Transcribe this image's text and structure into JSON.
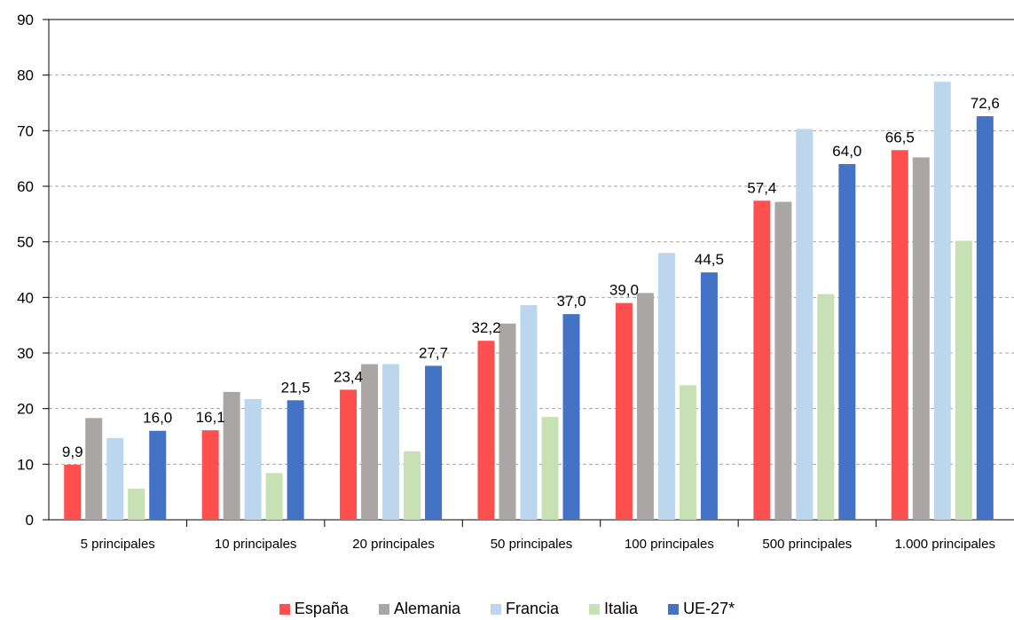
{
  "chart_data": {
    "type": "bar",
    "categories": [
      "5 principales",
      "10 principales",
      "20 principales",
      "50 principales",
      "100 principales",
      "500 principales",
      "1.000 principales"
    ],
    "series": [
      {
        "name": "España",
        "color": "#ff4f4f",
        "values": [
          9.9,
          16.1,
          23.4,
          32.2,
          39.0,
          57.4,
          66.5
        ]
      },
      {
        "name": "Alemania",
        "color": "#aba6a6",
        "values": [
          18.3,
          23.0,
          28.0,
          35.3,
          40.8,
          57.2,
          65.2
        ]
      },
      {
        "name": "Francia",
        "color": "#bcd6ee",
        "values": [
          14.7,
          21.7,
          28.0,
          38.6,
          48.0,
          70.3,
          78.8
        ]
      },
      {
        "name": "Italia",
        "color": "#c7e0b4",
        "values": [
          5.6,
          8.4,
          12.3,
          18.5,
          24.2,
          40.6,
          50.2
        ]
      },
      {
        "name": "UE-27*",
        "color": "#4472c4",
        "values": [
          16.0,
          21.5,
          27.7,
          37.0,
          44.5,
          64.0,
          72.6
        ]
      }
    ],
    "data_labels": {
      "España": [
        "9,9",
        "16,1",
        "23,4",
        "32,2",
        "39,0",
        "57,4",
        "66,5"
      ],
      "UE-27*": [
        "16,0",
        "21,5",
        "27,7",
        "37,0",
        "44,5",
        "64,0",
        "72,6"
      ]
    },
    "y_ticks": [
      "0",
      "10",
      "20",
      "30",
      "40",
      "50",
      "60",
      "70",
      "80",
      "90"
    ],
    "ylim": [
      0,
      90
    ],
    "grid": true,
    "legend": "bottom"
  }
}
